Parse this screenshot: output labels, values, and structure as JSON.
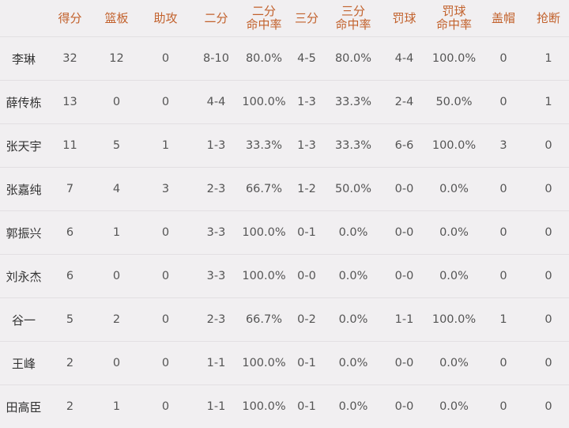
{
  "table": {
    "columns": [
      "",
      "得分",
      "篮板",
      "助攻",
      "二分",
      "二分\n命中率",
      "三分",
      "三分\n命中率",
      "罚球",
      "罚球\n命中率",
      "盖帽",
      "抢断"
    ],
    "rows": [
      [
        "李琳",
        "32",
        "12",
        "0",
        "8-10",
        "80.0%",
        "4-5",
        "80.0%",
        "4-4",
        "100.0%",
        "0",
        "1"
      ],
      [
        "薛传栋",
        "13",
        "0",
        "0",
        "4-4",
        "100.0%",
        "1-3",
        "33.3%",
        "2-4",
        "50.0%",
        "0",
        "1"
      ],
      [
        "张天宇",
        "11",
        "5",
        "1",
        "1-3",
        "33.3%",
        "1-3",
        "33.3%",
        "6-6",
        "100.0%",
        "3",
        "0"
      ],
      [
        "张嘉纯",
        "7",
        "4",
        "3",
        "2-3",
        "66.7%",
        "1-2",
        "50.0%",
        "0-0",
        "0.0%",
        "0",
        "0"
      ],
      [
        "郭振兴",
        "6",
        "1",
        "0",
        "3-3",
        "100.0%",
        "0-1",
        "0.0%",
        "0-0",
        "0.0%",
        "0",
        "0"
      ],
      [
        "刘永杰",
        "6",
        "0",
        "0",
        "3-3",
        "100.0%",
        "0-0",
        "0.0%",
        "0-0",
        "0.0%",
        "0",
        "0"
      ],
      [
        "谷一",
        "5",
        "2",
        "0",
        "2-3",
        "66.7%",
        "0-2",
        "0.0%",
        "1-1",
        "100.0%",
        "1",
        "0"
      ],
      [
        "王峰",
        "2",
        "0",
        "0",
        "1-1",
        "100.0%",
        "0-1",
        "0.0%",
        "0-0",
        "0.0%",
        "0",
        "0"
      ],
      [
        "田高臣",
        "2",
        "1",
        "0",
        "1-1",
        "100.0%",
        "0-1",
        "0.0%",
        "0-0",
        "0.0%",
        "0",
        "0"
      ]
    ]
  },
  "colors": {
    "header_text": "#c2612c",
    "background": "#f1eff1"
  }
}
